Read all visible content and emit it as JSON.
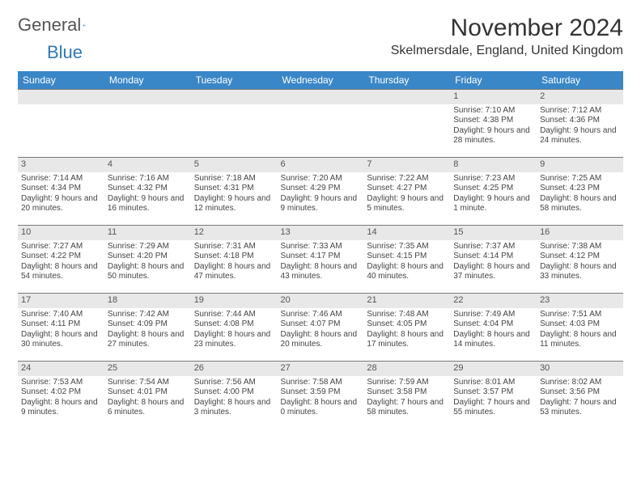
{
  "logo": {
    "text1": "General",
    "text2": "Blue"
  },
  "title": {
    "month": "November 2024",
    "location": "Skelmersdale, England, United Kingdom"
  },
  "colors": {
    "header_bg": "#3a87c8",
    "header_text": "#ffffff",
    "daynum_bg": "#e8e8e8",
    "border": "#7a7a7a",
    "body_text": "#444444",
    "logo_blue": "#2f77bb"
  },
  "weekdays": [
    "Sunday",
    "Monday",
    "Tuesday",
    "Wednesday",
    "Thursday",
    "Friday",
    "Saturday"
  ],
  "weeks": [
    [
      null,
      null,
      null,
      null,
      null,
      {
        "n": "1",
        "sr": "7:10 AM",
        "ss": "4:38 PM",
        "dl": "9 hours and 28 minutes."
      },
      {
        "n": "2",
        "sr": "7:12 AM",
        "ss": "4:36 PM",
        "dl": "9 hours and 24 minutes."
      }
    ],
    [
      {
        "n": "3",
        "sr": "7:14 AM",
        "ss": "4:34 PM",
        "dl": "9 hours and 20 minutes."
      },
      {
        "n": "4",
        "sr": "7:16 AM",
        "ss": "4:32 PM",
        "dl": "9 hours and 16 minutes."
      },
      {
        "n": "5",
        "sr": "7:18 AM",
        "ss": "4:31 PM",
        "dl": "9 hours and 12 minutes."
      },
      {
        "n": "6",
        "sr": "7:20 AM",
        "ss": "4:29 PM",
        "dl": "9 hours and 9 minutes."
      },
      {
        "n": "7",
        "sr": "7:22 AM",
        "ss": "4:27 PM",
        "dl": "9 hours and 5 minutes."
      },
      {
        "n": "8",
        "sr": "7:23 AM",
        "ss": "4:25 PM",
        "dl": "9 hours and 1 minute."
      },
      {
        "n": "9",
        "sr": "7:25 AM",
        "ss": "4:23 PM",
        "dl": "8 hours and 58 minutes."
      }
    ],
    [
      {
        "n": "10",
        "sr": "7:27 AM",
        "ss": "4:22 PM",
        "dl": "8 hours and 54 minutes."
      },
      {
        "n": "11",
        "sr": "7:29 AM",
        "ss": "4:20 PM",
        "dl": "8 hours and 50 minutes."
      },
      {
        "n": "12",
        "sr": "7:31 AM",
        "ss": "4:18 PM",
        "dl": "8 hours and 47 minutes."
      },
      {
        "n": "13",
        "sr": "7:33 AM",
        "ss": "4:17 PM",
        "dl": "8 hours and 43 minutes."
      },
      {
        "n": "14",
        "sr": "7:35 AM",
        "ss": "4:15 PM",
        "dl": "8 hours and 40 minutes."
      },
      {
        "n": "15",
        "sr": "7:37 AM",
        "ss": "4:14 PM",
        "dl": "8 hours and 37 minutes."
      },
      {
        "n": "16",
        "sr": "7:38 AM",
        "ss": "4:12 PM",
        "dl": "8 hours and 33 minutes."
      }
    ],
    [
      {
        "n": "17",
        "sr": "7:40 AM",
        "ss": "4:11 PM",
        "dl": "8 hours and 30 minutes."
      },
      {
        "n": "18",
        "sr": "7:42 AM",
        "ss": "4:09 PM",
        "dl": "8 hours and 27 minutes."
      },
      {
        "n": "19",
        "sr": "7:44 AM",
        "ss": "4:08 PM",
        "dl": "8 hours and 23 minutes."
      },
      {
        "n": "20",
        "sr": "7:46 AM",
        "ss": "4:07 PM",
        "dl": "8 hours and 20 minutes."
      },
      {
        "n": "21",
        "sr": "7:48 AM",
        "ss": "4:05 PM",
        "dl": "8 hours and 17 minutes."
      },
      {
        "n": "22",
        "sr": "7:49 AM",
        "ss": "4:04 PM",
        "dl": "8 hours and 14 minutes."
      },
      {
        "n": "23",
        "sr": "7:51 AM",
        "ss": "4:03 PM",
        "dl": "8 hours and 11 minutes."
      }
    ],
    [
      {
        "n": "24",
        "sr": "7:53 AM",
        "ss": "4:02 PM",
        "dl": "8 hours and 9 minutes."
      },
      {
        "n": "25",
        "sr": "7:54 AM",
        "ss": "4:01 PM",
        "dl": "8 hours and 6 minutes."
      },
      {
        "n": "26",
        "sr": "7:56 AM",
        "ss": "4:00 PM",
        "dl": "8 hours and 3 minutes."
      },
      {
        "n": "27",
        "sr": "7:58 AM",
        "ss": "3:59 PM",
        "dl": "8 hours and 0 minutes."
      },
      {
        "n": "28",
        "sr": "7:59 AM",
        "ss": "3:58 PM",
        "dl": "7 hours and 58 minutes."
      },
      {
        "n": "29",
        "sr": "8:01 AM",
        "ss": "3:57 PM",
        "dl": "7 hours and 55 minutes."
      },
      {
        "n": "30",
        "sr": "8:02 AM",
        "ss": "3:56 PM",
        "dl": "7 hours and 53 minutes."
      }
    ]
  ],
  "labels": {
    "sunrise": "Sunrise:",
    "sunset": "Sunset:",
    "daylight": "Daylight:"
  }
}
